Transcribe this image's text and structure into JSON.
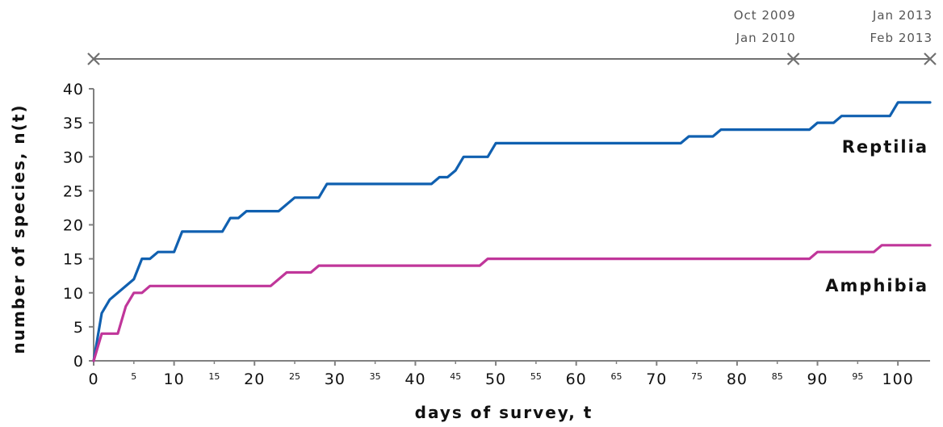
{
  "chart_data": {
    "type": "line",
    "title": "",
    "xlabel": "days of survey, t",
    "ylabel": "number of species, n(t)",
    "xlim": [
      0,
      104
    ],
    "ylim": [
      0,
      40
    ],
    "x_major_ticks": [
      0,
      10,
      20,
      30,
      40,
      50,
      60,
      70,
      80,
      90,
      100
    ],
    "x_minor_ticks": [
      5,
      15,
      25,
      35,
      45,
      55,
      65,
      75,
      85,
      95
    ],
    "y_ticks": [
      0,
      5,
      10,
      15,
      20,
      25,
      30,
      35,
      40
    ],
    "grid": false,
    "series": [
      {
        "name": "Reptilia",
        "color": "#1060b0",
        "points": [
          [
            0,
            0
          ],
          [
            1,
            7
          ],
          [
            2,
            9
          ],
          [
            5,
            12
          ],
          [
            6,
            15
          ],
          [
            7,
            15
          ],
          [
            8,
            16
          ],
          [
            10,
            16
          ],
          [
            11,
            19
          ],
          [
            16,
            19
          ],
          [
            17,
            21
          ],
          [
            18,
            21
          ],
          [
            19,
            22
          ],
          [
            23,
            22
          ],
          [
            25,
            24
          ],
          [
            28,
            24
          ],
          [
            29,
            26
          ],
          [
            42,
            26
          ],
          [
            43,
            27
          ],
          [
            44,
            27
          ],
          [
            45,
            28
          ],
          [
            46,
            30
          ],
          [
            49,
            30
          ],
          [
            50,
            32
          ],
          [
            73,
            32
          ],
          [
            74,
            33
          ],
          [
            77,
            33
          ],
          [
            78,
            34
          ],
          [
            89,
            34
          ],
          [
            90,
            35
          ],
          [
            92,
            35
          ],
          [
            93,
            36
          ],
          [
            99,
            36
          ],
          [
            100,
            38
          ],
          [
            104,
            38
          ]
        ]
      },
      {
        "name": "Amphibia",
        "color": "#c0369a",
        "points": [
          [
            0,
            0
          ],
          [
            1,
            4
          ],
          [
            3,
            4
          ],
          [
            4,
            8
          ],
          [
            5,
            10
          ],
          [
            6,
            10
          ],
          [
            7,
            11
          ],
          [
            22,
            11
          ],
          [
            24,
            13
          ],
          [
            27,
            13
          ],
          [
            28,
            14
          ],
          [
            48,
            14
          ],
          [
            49,
            15
          ],
          [
            89,
            15
          ],
          [
            90,
            16
          ],
          [
            97,
            16
          ],
          [
            98,
            17
          ],
          [
            104,
            17
          ]
        ]
      }
    ],
    "survey_periods": {
      "marks": [
        0,
        87,
        104
      ],
      "labels": [
        {
          "line1": "Oct 2009",
          "line2": "Jan 2010"
        },
        {
          "line1": "Jan 2013",
          "line2": "Feb 2013"
        }
      ]
    }
  }
}
